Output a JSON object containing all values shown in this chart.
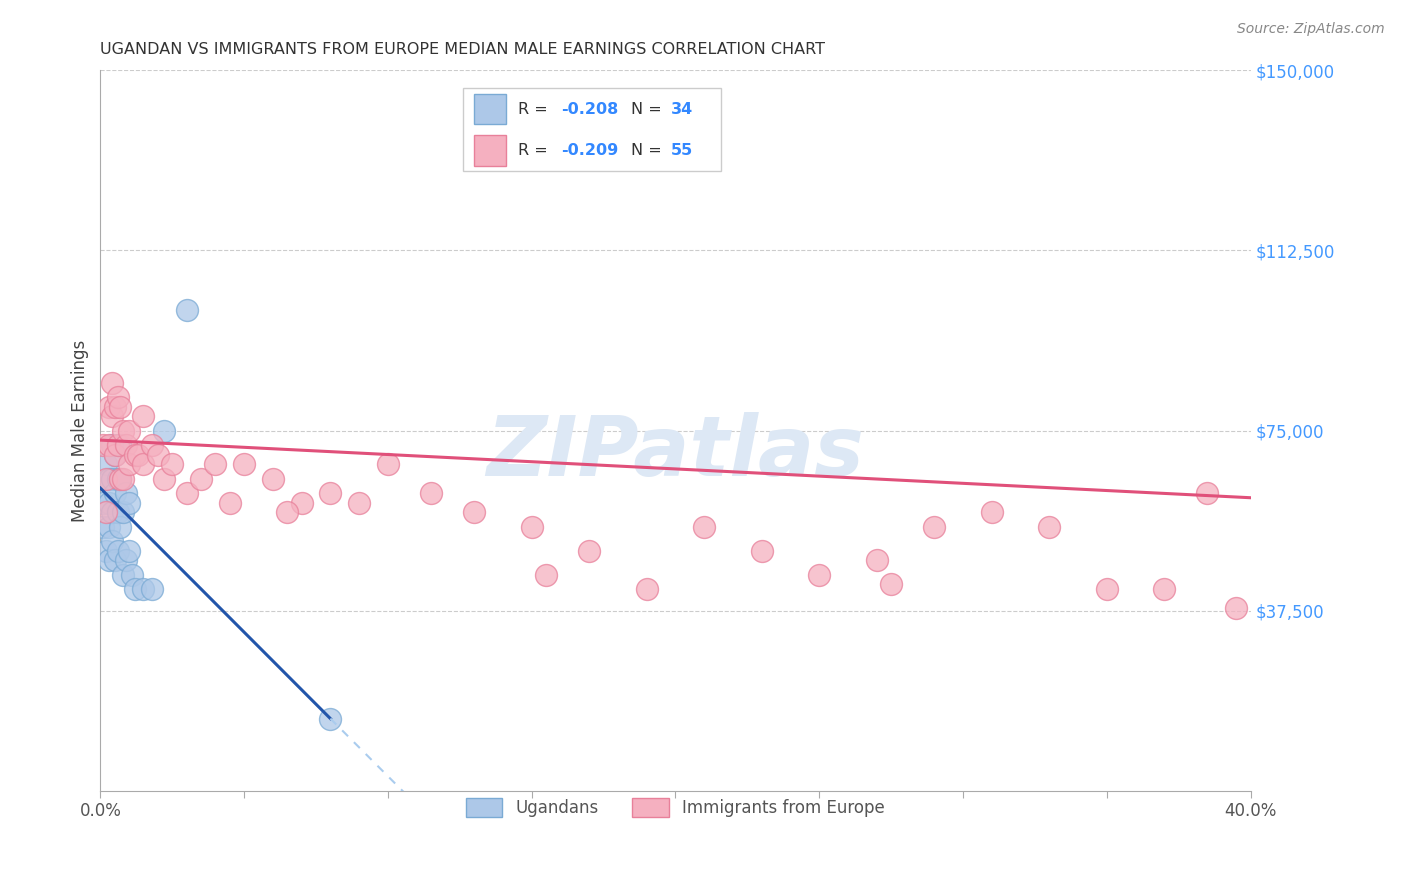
{
  "title": "UGANDAN VS IMMIGRANTS FROM EUROPE MEDIAN MALE EARNINGS CORRELATION CHART",
  "source": "Source: ZipAtlas.com",
  "ylabel": "Median Male Earnings",
  "y_ticks": [
    0,
    37500,
    75000,
    112500,
    150000
  ],
  "y_tick_labels": [
    "",
    "$37,500",
    "$75,000",
    "$112,500",
    "$150,000"
  ],
  "x_min": 0.0,
  "x_max": 0.4,
  "y_min": 0,
  "y_max": 150000,
  "legend1_r": "-0.208",
  "legend1_n": "34",
  "legend2_r": "-0.209",
  "legend2_n": "55",
  "ugandan_color": "#adc8e8",
  "europe_color": "#f5b0c0",
  "ugandan_edge": "#7aaad4",
  "europe_edge": "#e8809a",
  "line_blue": "#2255aa",
  "line_pink": "#e0507a",
  "line_dash_blue": "#aaccee",
  "watermark_color": "#dde8f5",
  "ugandan_x": [
    0.001,
    0.001,
    0.002,
    0.002,
    0.003,
    0.003,
    0.003,
    0.003,
    0.004,
    0.004,
    0.004,
    0.004,
    0.005,
    0.005,
    0.005,
    0.006,
    0.006,
    0.006,
    0.007,
    0.007,
    0.007,
    0.008,
    0.008,
    0.009,
    0.009,
    0.01,
    0.01,
    0.011,
    0.012,
    0.015,
    0.018,
    0.022,
    0.03,
    0.08
  ],
  "ugandan_y": [
    60000,
    55000,
    68000,
    50000,
    65000,
    60000,
    55000,
    48000,
    72000,
    65000,
    58000,
    52000,
    70000,
    62000,
    48000,
    65000,
    58000,
    50000,
    72000,
    65000,
    55000,
    58000,
    45000,
    62000,
    48000,
    60000,
    50000,
    45000,
    42000,
    42000,
    42000,
    75000,
    100000,
    15000
  ],
  "europe_x": [
    0.001,
    0.002,
    0.002,
    0.003,
    0.003,
    0.004,
    0.004,
    0.005,
    0.005,
    0.006,
    0.006,
    0.007,
    0.007,
    0.008,
    0.008,
    0.009,
    0.01,
    0.01,
    0.012,
    0.013,
    0.015,
    0.015,
    0.018,
    0.02,
    0.022,
    0.025,
    0.03,
    0.035,
    0.04,
    0.045,
    0.05,
    0.06,
    0.07,
    0.08,
    0.09,
    0.1,
    0.115,
    0.13,
    0.15,
    0.17,
    0.19,
    0.21,
    0.23,
    0.25,
    0.27,
    0.29,
    0.31,
    0.33,
    0.35,
    0.37,
    0.385,
    0.395,
    0.275,
    0.155,
    0.065
  ],
  "europe_y": [
    72000,
    65000,
    58000,
    80000,
    72000,
    85000,
    78000,
    80000,
    70000,
    82000,
    72000,
    80000,
    65000,
    75000,
    65000,
    72000,
    75000,
    68000,
    70000,
    70000,
    78000,
    68000,
    72000,
    70000,
    65000,
    68000,
    62000,
    65000,
    68000,
    60000,
    68000,
    65000,
    60000,
    62000,
    60000,
    68000,
    62000,
    58000,
    55000,
    50000,
    42000,
    55000,
    50000,
    45000,
    48000,
    55000,
    58000,
    55000,
    42000,
    42000,
    62000,
    38000,
    43000,
    45000,
    58000
  ]
}
